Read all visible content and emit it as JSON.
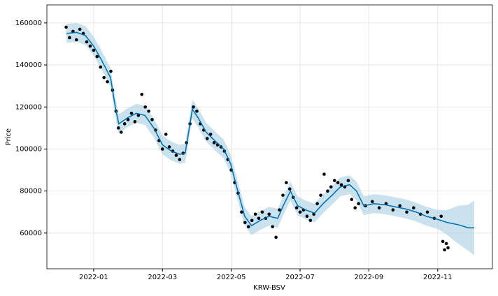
{
  "chart_data": {
    "type": "forecast",
    "xlabel": "KRW-BSV",
    "ylabel": "Price",
    "grid": true,
    "xlim": [
      -1.36,
      11.59
    ],
    "ylim": [
      43000,
      168600
    ],
    "xticks": [
      {
        "value": 0,
        "label": "2022-01"
      },
      {
        "value": 2,
        "label": "2022-03"
      },
      {
        "value": 4,
        "label": "2022-05"
      },
      {
        "value": 6,
        "label": "2022-07"
      },
      {
        "value": 8,
        "label": "2022-09"
      },
      {
        "value": 10,
        "label": "2022-11"
      }
    ],
    "yticks": [
      60000,
      80000,
      100000,
      120000,
      140000,
      160000
    ],
    "series": [
      {
        "kind": "scatter",
        "color": "#000000",
        "x": [
          -0.8,
          -0.7,
          -0.6,
          -0.5,
          -0.4,
          -0.3,
          -0.2,
          -0.1,
          0,
          0.1,
          0.2,
          0.3,
          0.4,
          0.5,
          0.55,
          0.65,
          0.72,
          0.8,
          0.9,
          1.0,
          1.1,
          1.2,
          1.3,
          1.4,
          1.5,
          1.6,
          1.7,
          1.8,
          1.9,
          2.0,
          2.1,
          2.2,
          2.3,
          2.4,
          2.5,
          2.6,
          2.7,
          2.8,
          2.9,
          3.0,
          3.1,
          3.2,
          3.3,
          3.4,
          3.5,
          3.6,
          3.7,
          3.8,
          3.9,
          4.0,
          4.1,
          4.2,
          4.3,
          4.4,
          4.5,
          4.6,
          4.7,
          4.8,
          4.9,
          5.0,
          5.1,
          5.2,
          5.3,
          5.4,
          5.5,
          5.6,
          5.7,
          5.8,
          5.9,
          6.0,
          6.1,
          6.2,
          6.3,
          6.4,
          6.5,
          6.6,
          6.7,
          6.8,
          6.9,
          7.0,
          7.1,
          7.2,
          7.3,
          7.4,
          7.5,
          7.6,
          7.7,
          7.9,
          8.1,
          8.3,
          8.5,
          8.7,
          8.9,
          9.1,
          9.3,
          9.5,
          9.7,
          9.9,
          10.1,
          10.15,
          10.2,
          10.25,
          10.3
        ],
        "values": [
          158000,
          153000,
          156000,
          152000,
          157000,
          155000,
          151000,
          149000,
          147000,
          144000,
          139000,
          134000,
          132000,
          137000,
          128000,
          118000,
          110000,
          108000,
          112000,
          114000,
          117000,
          113000,
          116000,
          126000,
          120000,
          118000,
          114000,
          109000,
          104000,
          100000,
          107000,
          101000,
          99000,
          97000,
          95000,
          98000,
          103000,
          112000,
          120000,
          118000,
          112000,
          109000,
          105000,
          107000,
          103000,
          102000,
          101000,
          99000,
          95000,
          90000,
          84000,
          79000,
          70000,
          65000,
          63000,
          66000,
          69000,
          67000,
          70000,
          67000,
          69000,
          63000,
          58000,
          71000,
          78000,
          84000,
          81000,
          77000,
          72000,
          70000,
          71000,
          68000,
          66000,
          69000,
          74000,
          78000,
          88000,
          80000,
          82000,
          85000,
          84000,
          83000,
          82000,
          85000,
          76000,
          72000,
          74000,
          73000,
          75000,
          72000,
          74000,
          71000,
          73000,
          70000,
          72000,
          69000,
          70000,
          67000,
          68000,
          56000,
          52000,
          55000,
          53000
        ]
      },
      {
        "kind": "line",
        "color": "#0072B2",
        "band_color": "#a6cee3",
        "x": [
          -0.79,
          -0.49,
          -0.24,
          0,
          0.24,
          0.49,
          0.63,
          0.73,
          1.0,
          1.24,
          1.49,
          1.75,
          2.0,
          2.26,
          2.5,
          2.66,
          2.87,
          3.03,
          3.27,
          3.52,
          3.78,
          3.98,
          4.19,
          4.39,
          4.59,
          4.84,
          5.1,
          5.35,
          5.51,
          5.72,
          5.93,
          6.16,
          6.42,
          6.67,
          6.93,
          7.17,
          7.44,
          7.64,
          7.85,
          8.15,
          8.46,
          8.76,
          9.07,
          9.37,
          9.67,
          10.0,
          10.28,
          10.59,
          10.89,
          11.06
        ],
        "values": [
          155000,
          155500,
          154000,
          149000,
          142000,
          134000,
          120000,
          112000,
          115000,
          117000,
          116000,
          110000,
          102000,
          99000,
          97500,
          98000,
          119000,
          115000,
          108000,
          104000,
          100000,
          93000,
          80000,
          68000,
          63500,
          66000,
          68000,
          67000,
          73000,
          80000,
          73000,
          71000,
          69500,
          74000,
          78000,
          82000,
          83000,
          80000,
          73000,
          74000,
          73500,
          72500,
          71500,
          70000,
          68000,
          66500,
          65000,
          64000,
          62500,
          62500
        ],
        "lower": [
          150500,
          151000,
          149500,
          144500,
          137500,
          129500,
          115500,
          107500,
          110500,
          112500,
          111500,
          105500,
          97500,
          94500,
          93000,
          93500,
          114500,
          110500,
          103500,
          99500,
          95500,
          88500,
          75500,
          63500,
          59000,
          61500,
          63500,
          62500,
          68500,
          75500,
          68500,
          66500,
          65000,
          69500,
          73500,
          77500,
          78500,
          75500,
          68500,
          69500,
          69000,
          68000,
          67000,
          65500,
          63500,
          62000,
          59000,
          55000,
          51500,
          49500
        ],
        "upper": [
          159500,
          160000,
          158500,
          153500,
          146500,
          138500,
          124500,
          116500,
          119500,
          121500,
          120500,
          114500,
          106500,
          103500,
          102000,
          102500,
          123500,
          119500,
          112500,
          108500,
          104500,
          97500,
          84500,
          72500,
          68000,
          70500,
          72500,
          71500,
          77500,
          84500,
          77500,
          75500,
          74000,
          78500,
          82500,
          86500,
          87500,
          84500,
          77500,
          78500,
          78000,
          77000,
          76000,
          74500,
          72500,
          71000,
          71000,
          73000,
          73500,
          75500
        ]
      }
    ]
  }
}
